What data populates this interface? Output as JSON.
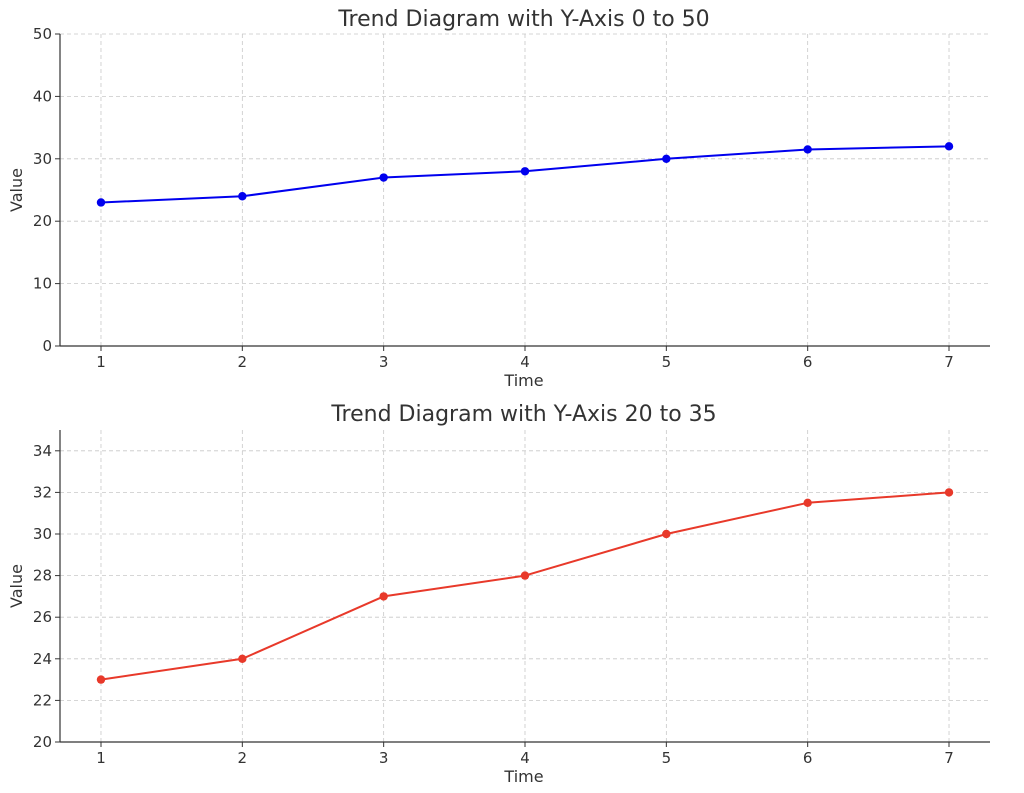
{
  "chart_data": [
    {
      "type": "line",
      "title": "Trend Diagram with Y-Axis 0 to 50",
      "xlabel": "Time",
      "ylabel": "Value",
      "x": [
        1,
        2,
        3,
        4,
        5,
        6,
        7
      ],
      "xticks": [
        "1",
        "2",
        "3",
        "4",
        "5",
        "6",
        "7"
      ],
      "yticks": [
        "0",
        "10",
        "20",
        "30",
        "40",
        "50"
      ],
      "ylim": [
        0,
        50
      ],
      "grid": true,
      "legend": "none",
      "series": [
        {
          "values": [
            23,
            24,
            27,
            28,
            30,
            31.5,
            32
          ],
          "color": "#0000ee"
        }
      ]
    },
    {
      "type": "line",
      "title": "Trend Diagram with Y-Axis 20 to 35",
      "xlabel": "Time",
      "ylabel": "Value",
      "x": [
        1,
        2,
        3,
        4,
        5,
        6,
        7
      ],
      "xticks": [
        "1",
        "2",
        "3",
        "4",
        "5",
        "6",
        "7"
      ],
      "yticks": [
        "20",
        "22",
        "24",
        "26",
        "28",
        "30",
        "32",
        "34"
      ],
      "ylim": [
        20,
        35
      ],
      "grid": true,
      "legend": "none",
      "series": [
        {
          "values": [
            23,
            24,
            27,
            28,
            30,
            31.5,
            32
          ],
          "color": "#e8392a"
        }
      ]
    }
  ]
}
